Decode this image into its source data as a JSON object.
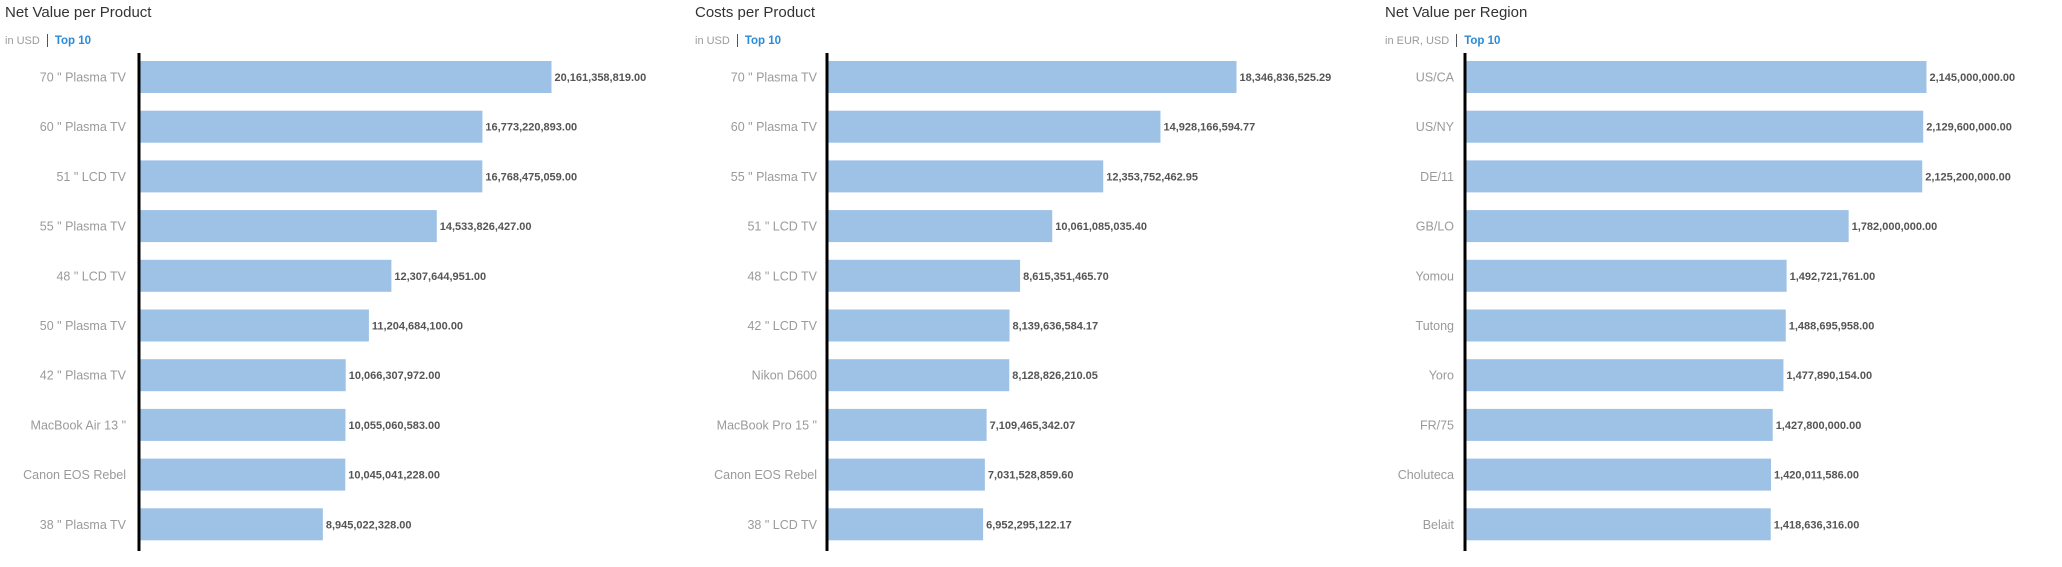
{
  "colors": {
    "bar": "#9dc2e6",
    "axis": "#000000",
    "accent": "#2a8ad6"
  },
  "chart_data": [
    {
      "type": "bar",
      "orientation": "horizontal",
      "title": "Net Value per Product",
      "unit": "in USD",
      "filter": "Top 10",
      "xlabel": "",
      "ylabel": "",
      "xlim": [
        0,
        20161358819
      ],
      "grid": false,
      "categories": [
        "70 \" Plasma TV",
        "60 \" Plasma TV",
        "51 \" LCD TV",
        "55 \" Plasma TV",
        "48 \" LCD TV",
        "50 \" Plasma TV",
        "42 \" Plasma TV",
        "MacBook Air 13 \"",
        "Canon EOS Rebel",
        "38 \" Plasma TV"
      ],
      "values": [
        20161358819.0,
        16773220893.0,
        16768475059.0,
        14533826427.0,
        12307644951.0,
        11204684100.0,
        10066307972.0,
        10055060583.0,
        10045041228.0,
        8945022328.0
      ],
      "value_labels": [
        "20,161,358,819.00",
        "16,773,220,893.00",
        "16,768,475,059.00",
        "14,533,826,427.00",
        "12,307,644,951.00",
        "11,204,684,100.00",
        "10,066,307,972.00",
        "10,055,060,583.00",
        "10,045,041,228.00",
        "8,945,022,328.00"
      ]
    },
    {
      "type": "bar",
      "orientation": "horizontal",
      "title": "Costs per Product",
      "unit": "in USD",
      "filter": "Top 10",
      "xlabel": "",
      "ylabel": "",
      "xlim": [
        0,
        18346836525.29
      ],
      "grid": false,
      "categories": [
        "70 \" Plasma TV",
        "60 \" Plasma TV",
        "55 \" Plasma TV",
        "51 \" LCD TV",
        "48 \" LCD TV",
        "42 \" LCD TV",
        "Nikon D600",
        "MacBook Pro 15 \"",
        "Canon EOS Rebel",
        "38 \" LCD TV"
      ],
      "values": [
        18346836525.29,
        14928166594.77,
        12353752462.95,
        10061085035.4,
        8615351465.7,
        8139636584.17,
        8128826210.05,
        7109465342.07,
        7031528859.6,
        6952295122.17
      ],
      "value_labels": [
        "18,346,836,525.29",
        "14,928,166,594.77",
        "12,353,752,462.95",
        "10,061,085,035.40",
        "8,615,351,465.70",
        "8,139,636,584.17",
        "8,128,826,210.05",
        "7,109,465,342.07",
        "7,031,528,859.60",
        "6,952,295,122.17"
      ]
    },
    {
      "type": "bar",
      "orientation": "horizontal",
      "title": "Net Value per Region",
      "unit": "in EUR, USD",
      "filter": "Top 10",
      "xlabel": "",
      "ylabel": "",
      "xlim": [
        0,
        2145000000
      ],
      "grid": false,
      "categories": [
        "US/CA",
        "US/NY",
        "DE/11",
        "GB/LO",
        "Yomou",
        "Tutong",
        "Yoro",
        "FR/75",
        "Choluteca",
        "Belait"
      ],
      "values": [
        2145000000.0,
        2129600000.0,
        2125200000.0,
        1782000000.0,
        1492721761.0,
        1488695958.0,
        1477890154.0,
        1427800000.0,
        1420011586.0,
        1418636316.0
      ],
      "value_labels": [
        "2,145,000,000.00",
        "2,129,600,000.00",
        "2,125,200,000.00",
        "1,782,000,000.00",
        "1,492,721,761.00",
        "1,488,695,958.00",
        "1,477,890,154.00",
        "1,427,800,000.00",
        "1,420,011,586.00",
        "1,418,636,316.00"
      ]
    }
  ]
}
